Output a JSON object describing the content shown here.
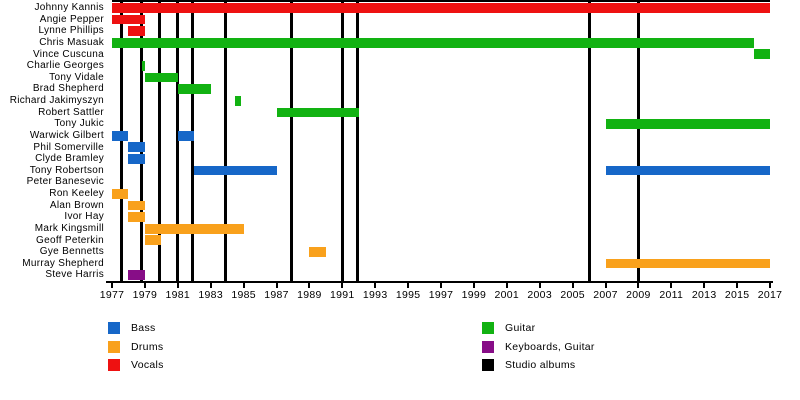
{
  "chart_data": {
    "type": "bar",
    "subtype": "band-members-timeline-gantt",
    "title": "",
    "x_axis": {
      "min": 1977,
      "max": 2017,
      "tick_step": 2,
      "tick_labels": [
        "1977",
        "1979",
        "1981",
        "1983",
        "1985",
        "1987",
        "1989",
        "1991",
        "1993",
        "1995",
        "1997",
        "1999",
        "2001",
        "2003",
        "2005",
        "2007",
        "2009",
        "2011",
        "2013",
        "2015",
        "2017"
      ]
    },
    "roles": {
      "bass": {
        "label": "Bass",
        "color": "#1667c8"
      },
      "drums": {
        "label": "Drums",
        "color": "#f9a11c"
      },
      "vocals": {
        "label": "Vocals",
        "color": "#ee1111"
      },
      "guitar": {
        "label": "Guitar",
        "color": "#12b212"
      },
      "keyboards_guitar": {
        "label": "Keyboards, Guitar",
        "color": "#870d87"
      },
      "studio_albums": {
        "label": "Studio albums",
        "color": "#000000"
      }
    },
    "members": [
      {
        "name": "Johnny Kannis",
        "segments": [
          {
            "role": "vocals",
            "start": 1977,
            "end": 2017
          }
        ]
      },
      {
        "name": "Angie Pepper",
        "segments": [
          {
            "role": "vocals",
            "start": 1977,
            "end": 1979
          }
        ]
      },
      {
        "name": "Lynne Phillips",
        "segments": [
          {
            "role": "vocals",
            "start": 1978,
            "end": 1979
          }
        ]
      },
      {
        "name": "Chris Masuak",
        "segments": [
          {
            "role": "guitar",
            "start": 1977,
            "end": 2016
          }
        ]
      },
      {
        "name": "Vince Cuscuna",
        "segments": [
          {
            "role": "guitar",
            "start": 2016,
            "end": 2017
          }
        ]
      },
      {
        "name": "Charlie Georges",
        "segments": [
          {
            "role": "guitar",
            "start": 1978.85,
            "end": 1979
          }
        ]
      },
      {
        "name": "Tony Vidale",
        "segments": [
          {
            "role": "guitar",
            "start": 1979,
            "end": 1981
          }
        ]
      },
      {
        "name": "Brad Shepherd",
        "segments": [
          {
            "role": "guitar",
            "start": 1981,
            "end": 1983
          }
        ]
      },
      {
        "name": "Richard Jakimyszyn",
        "segments": [
          {
            "role": "guitar",
            "start": 1984.5,
            "end": 1984.85
          }
        ]
      },
      {
        "name": "Robert Sattler",
        "segments": [
          {
            "role": "guitar",
            "start": 1987,
            "end": 1992
          }
        ]
      },
      {
        "name": "Tony Jukic",
        "segments": [
          {
            "role": "guitar",
            "start": 2007,
            "end": 2017
          }
        ]
      },
      {
        "name": "Warwick Gilbert",
        "segments": [
          {
            "role": "bass",
            "start": 1977,
            "end": 1978
          },
          {
            "role": "bass",
            "start": 1981,
            "end": 1982
          }
        ]
      },
      {
        "name": "Phil Somerville",
        "segments": [
          {
            "role": "bass",
            "start": 1978,
            "end": 1979
          }
        ]
      },
      {
        "name": "Clyde Bramley",
        "segments": [
          {
            "role": "bass",
            "start": 1978,
            "end": 1979
          }
        ]
      },
      {
        "name": "Tony Robertson",
        "segments": [
          {
            "role": "bass",
            "start": 1982,
            "end": 1987
          },
          {
            "role": "bass",
            "start": 2007,
            "end": 2017
          }
        ]
      },
      {
        "name": "Peter Banesevic",
        "segments": []
      },
      {
        "name": "Ron Keeley",
        "segments": [
          {
            "role": "drums",
            "start": 1977,
            "end": 1978
          }
        ]
      },
      {
        "name": "Alan Brown",
        "segments": [
          {
            "role": "drums",
            "start": 1978,
            "end": 1979
          }
        ]
      },
      {
        "name": "Ivor Hay",
        "segments": [
          {
            "role": "drums",
            "start": 1978,
            "end": 1979
          }
        ]
      },
      {
        "name": "Mark Kingsmill",
        "segments": [
          {
            "role": "drums",
            "start": 1979,
            "end": 1985
          }
        ]
      },
      {
        "name": "Geoff Peterkin",
        "segments": [
          {
            "role": "drums",
            "start": 1979,
            "end": 1980
          }
        ]
      },
      {
        "name": "Gye Bennetts",
        "segments": [
          {
            "role": "drums",
            "start": 1989,
            "end": 1990
          }
        ]
      },
      {
        "name": "Murray Shepherd",
        "segments": [
          {
            "role": "drums",
            "start": 2007,
            "end": 2017
          }
        ]
      },
      {
        "name": "Steve Harris",
        "segments": [
          {
            "role": "keyboards_guitar",
            "start": 1978,
            "end": 1979
          }
        ]
      }
    ],
    "studio_album_lines": [
      1977.6,
      1978.8,
      1979.9,
      1981,
      1981.9,
      1983.9,
      1987.9,
      1991,
      1991.9,
      2006,
      2009
    ],
    "legend": {
      "columns": [
        [
          "bass",
          "drums",
          "vocals"
        ],
        [
          "guitar",
          "keyboards_guitar",
          "studio_albums"
        ]
      ]
    }
  }
}
